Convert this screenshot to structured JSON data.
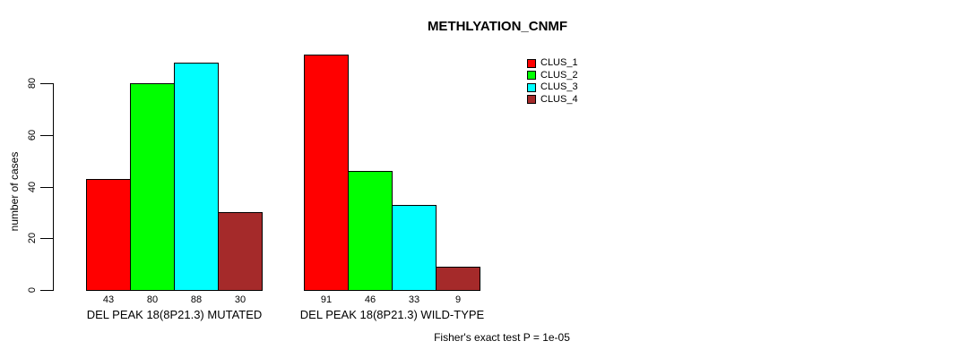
{
  "chart_data": {
    "type": "bar",
    "title": "METHLYATION_CNMF",
    "ylabel": "number of cases",
    "xlabel": "",
    "yticks": [
      0,
      20,
      40,
      60,
      80
    ],
    "ylim": [
      0,
      95
    ],
    "grid": false,
    "legend_position": "right-of-plot",
    "groups": [
      {
        "label": "DEL PEAK 18(8P21.3) MUTATED",
        "values": [
          43,
          80,
          88,
          30
        ]
      },
      {
        "label": "DEL PEAK 18(8P21.3) WILD-TYPE",
        "values": [
          91,
          46,
          33,
          9
        ]
      }
    ],
    "series": [
      {
        "name": "CLUS_1",
        "color": "#FF0000"
      },
      {
        "name": "CLUS_2",
        "color": "#00FF00"
      },
      {
        "name": "CLUS_3",
        "color": "#00FFFF"
      },
      {
        "name": "CLUS_4",
        "color": "#A52A2A"
      }
    ],
    "bar_value_labels": [
      [
        "43",
        "80",
        "88",
        "30"
      ],
      [
        "91",
        "46",
        "33",
        "9"
      ]
    ],
    "footnote": "Fisher's exact test P = 1e-05"
  }
}
